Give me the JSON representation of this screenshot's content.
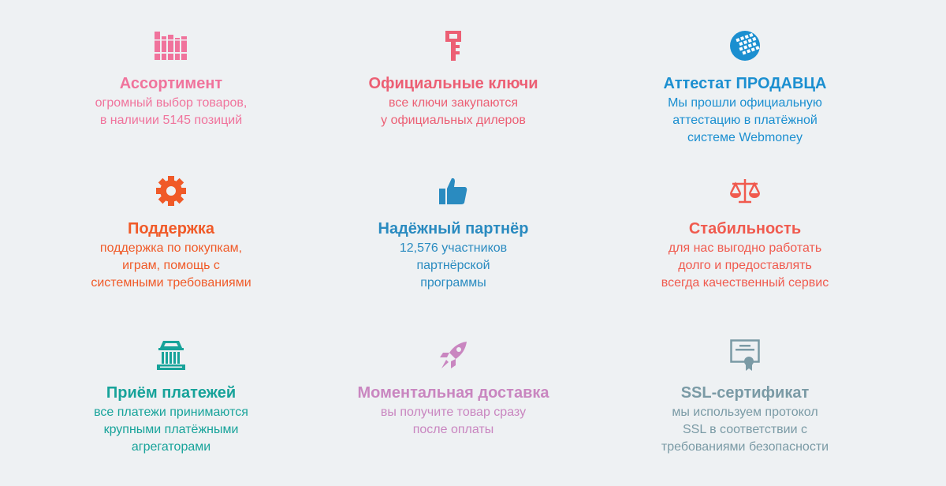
{
  "features": [
    {
      "icon": "books-icon",
      "color": "#f0739c",
      "title": "Ассортимент",
      "lines": [
        "огромный выбор товаров,",
        "в наличии 5145 позиций"
      ]
    },
    {
      "icon": "key-icon",
      "color": "#ec5f74",
      "title": "Официальные ключи",
      "lines": [
        "все ключи закупаются",
        "у официальных дилеров"
      ]
    },
    {
      "icon": "webmoney-globe-icon",
      "color": "#1b8fd0",
      "title": "Аттестат ПРОДАВЦА",
      "lines": [
        "Мы прошли официальную",
        "аттестацию в платёжной",
        "системе Webmoney"
      ]
    },
    {
      "icon": "gear-icon",
      "color": "#f05a28",
      "title": "Поддержка",
      "lines": [
        "поддержка по покупкам,",
        "играм, помощь с",
        "системными требованиями"
      ]
    },
    {
      "icon": "thumbs-up-icon",
      "color": "#2a8bc0",
      "title": "Надёжный партнёр",
      "lines": [
        "12,576 участников",
        "партнёрской",
        "программы"
      ]
    },
    {
      "icon": "scales-icon",
      "color": "#f05a4e",
      "title": "Стабильность",
      "lines": [
        "для нас выгодно работать",
        "долго и предоставлять",
        "всегда качественный сервис"
      ]
    },
    {
      "icon": "bank-icon",
      "color": "#17a39a",
      "title": "Приём платежей",
      "lines": [
        "все платежи принимаются",
        "крупными платёжными",
        "агрегаторами"
      ]
    },
    {
      "icon": "rocket-icon",
      "color": "#c986c0",
      "title": "Моментальная доставка",
      "lines": [
        "вы получите товар сразу",
        "после оплаты"
      ]
    },
    {
      "icon": "certificate-icon",
      "color": "#7a9aa5",
      "title": "SSL-сертификат",
      "lines": [
        "мы используем протокол",
        "SSL в соответствии с",
        "требованиями безопасности"
      ]
    }
  ]
}
